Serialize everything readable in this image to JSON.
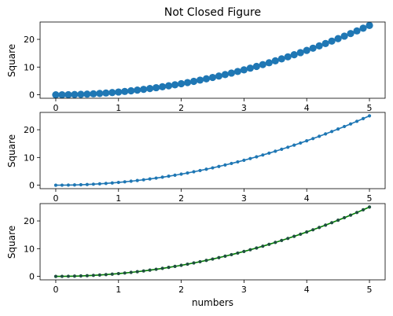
{
  "chart_data": [
    {
      "type": "scatter",
      "title": "Not Closed Figure",
      "ylabel": "Square",
      "xlabel": "",
      "xlim": [
        -0.25,
        5.25
      ],
      "ylim": [
        -1.25,
        26.25
      ],
      "xticks": [
        0,
        1,
        2,
        3,
        4,
        5
      ],
      "yticks": [
        0,
        10,
        20
      ],
      "grid": false,
      "series": [
        {
          "style": "large markers, no line",
          "color": "#1f77b4",
          "marker_color": "#1f77b4",
          "x": [
            0,
            0.1,
            0.2,
            0.3,
            0.4,
            0.5,
            0.6,
            0.7,
            0.8,
            0.9,
            1.0,
            1.1,
            1.2,
            1.3,
            1.4,
            1.5,
            1.6,
            1.7,
            1.8,
            1.9,
            2.0,
            2.1,
            2.2,
            2.3,
            2.4,
            2.5,
            2.6,
            2.7,
            2.8,
            2.9,
            3.0,
            3.1,
            3.2,
            3.3,
            3.4,
            3.5,
            3.6,
            3.7,
            3.8,
            3.9,
            4.0,
            4.1,
            4.2,
            4.3,
            4.4,
            4.5,
            4.6,
            4.7,
            4.8,
            4.9,
            5.0
          ],
          "y": [
            0,
            0.01,
            0.04,
            0.09,
            0.16,
            0.25,
            0.36,
            0.49,
            0.64,
            0.81,
            1.0,
            1.21,
            1.44,
            1.69,
            1.96,
            2.25,
            2.56,
            2.89,
            3.24,
            3.61,
            4.0,
            4.41,
            4.84,
            5.29,
            5.76,
            6.25,
            6.76,
            7.29,
            7.84,
            8.41,
            9.0,
            9.61,
            10.24,
            10.89,
            11.56,
            12.25,
            12.96,
            13.69,
            14.44,
            15.21,
            16.0,
            16.81,
            17.64,
            18.49,
            19.36,
            20.25,
            21.16,
            22.09,
            23.04,
            24.01,
            25.0
          ]
        }
      ]
    },
    {
      "type": "line",
      "title": "",
      "ylabel": "Square",
      "xlabel": "",
      "xlim": [
        -0.25,
        5.25
      ],
      "ylim": [
        -1.25,
        26.25
      ],
      "xticks": [
        0,
        1,
        2,
        3,
        4,
        5
      ],
      "yticks": [
        0,
        10,
        20
      ],
      "grid": false,
      "series": [
        {
          "style": "line with small markers",
          "color": "#1f77b4",
          "marker_color": "#1f77b4",
          "x": [
            0,
            0.1,
            0.2,
            0.3,
            0.4,
            0.5,
            0.6,
            0.7,
            0.8,
            0.9,
            1.0,
            1.1,
            1.2,
            1.3,
            1.4,
            1.5,
            1.6,
            1.7,
            1.8,
            1.9,
            2.0,
            2.1,
            2.2,
            2.3,
            2.4,
            2.5,
            2.6,
            2.7,
            2.8,
            2.9,
            3.0,
            3.1,
            3.2,
            3.3,
            3.4,
            3.5,
            3.6,
            3.7,
            3.8,
            3.9,
            4.0,
            4.1,
            4.2,
            4.3,
            4.4,
            4.5,
            4.6,
            4.7,
            4.8,
            4.9,
            5.0
          ],
          "y": [
            0,
            0.01,
            0.04,
            0.09,
            0.16,
            0.25,
            0.36,
            0.49,
            0.64,
            0.81,
            1.0,
            1.21,
            1.44,
            1.69,
            1.96,
            2.25,
            2.56,
            2.89,
            3.24,
            3.61,
            4.0,
            4.41,
            4.84,
            5.29,
            5.76,
            6.25,
            6.76,
            7.29,
            7.84,
            8.41,
            9.0,
            9.61,
            10.24,
            10.89,
            11.56,
            12.25,
            12.96,
            13.69,
            14.44,
            15.21,
            16.0,
            16.81,
            17.64,
            18.49,
            19.36,
            20.25,
            21.16,
            22.09,
            23.04,
            24.01,
            25.0
          ]
        }
      ]
    },
    {
      "type": "line",
      "title": "",
      "ylabel": "Square",
      "xlabel": "numbers",
      "xlim": [
        -0.25,
        5.25
      ],
      "ylim": [
        -1.25,
        26.25
      ],
      "xticks": [
        0,
        1,
        2,
        3,
        4,
        5
      ],
      "yticks": [
        0,
        10,
        20
      ],
      "grid": false,
      "series": [
        {
          "style": "line with small markers",
          "color": "#008000",
          "marker_color": "#1f4f3f",
          "x": [
            0,
            0.1,
            0.2,
            0.3,
            0.4,
            0.5,
            0.6,
            0.7,
            0.8,
            0.9,
            1.0,
            1.1,
            1.2,
            1.3,
            1.4,
            1.5,
            1.6,
            1.7,
            1.8,
            1.9,
            2.0,
            2.1,
            2.2,
            2.3,
            2.4,
            2.5,
            2.6,
            2.7,
            2.8,
            2.9,
            3.0,
            3.1,
            3.2,
            3.3,
            3.4,
            3.5,
            3.6,
            3.7,
            3.8,
            3.9,
            4.0,
            4.1,
            4.2,
            4.3,
            4.4,
            4.5,
            4.6,
            4.7,
            4.8,
            4.9,
            5.0
          ],
          "y": [
            0,
            0.01,
            0.04,
            0.09,
            0.16,
            0.25,
            0.36,
            0.49,
            0.64,
            0.81,
            1.0,
            1.21,
            1.44,
            1.69,
            1.96,
            2.25,
            2.56,
            2.89,
            3.24,
            3.61,
            4.0,
            4.41,
            4.84,
            5.29,
            5.76,
            6.25,
            6.76,
            7.29,
            7.84,
            8.41,
            9.0,
            9.61,
            10.24,
            10.89,
            11.56,
            12.25,
            12.96,
            13.69,
            14.44,
            15.21,
            16.0,
            16.81,
            17.64,
            18.49,
            19.36,
            20.25,
            21.16,
            22.09,
            23.04,
            24.01,
            25.0
          ]
        }
      ]
    }
  ]
}
